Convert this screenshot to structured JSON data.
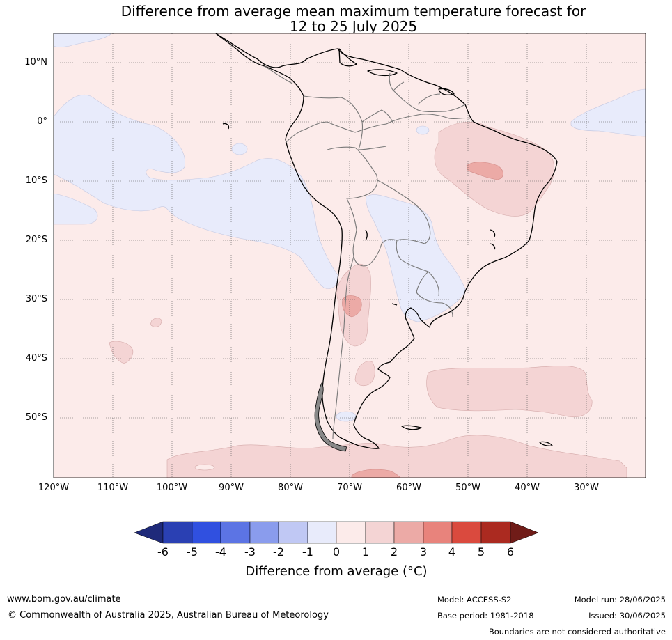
{
  "title": {
    "line1": "Difference from average mean maximum temperature forecast for",
    "line2": "12 to 25 July 2025"
  },
  "lat_labels": [
    "10°N",
    "0°",
    "10°S",
    "20°S",
    "30°S",
    "40°S",
    "50°S"
  ],
  "lon_labels": [
    "120°W",
    "110°W",
    "100°W",
    "90°W",
    "80°W",
    "70°W",
    "60°W",
    "50°W",
    "40°W",
    "30°W"
  ],
  "colorbar": {
    "title": "Difference from average (°C)",
    "ticks": [
      "-6",
      "-5",
      "-4",
      "-3",
      "-2",
      "-1",
      "0",
      "1",
      "2",
      "3",
      "4",
      "5",
      "6"
    ],
    "colors": [
      "#1f2a7a",
      "#2a40b3",
      "#3050e0",
      "#5c74e4",
      "#8a9ced",
      "#c0c8f4",
      "#e8ebfb",
      "#fcebea",
      "#f4d4d4",
      "#ecaaa6",
      "#e8837c",
      "#da4a3e",
      "#ab2a20",
      "#701c18"
    ]
  },
  "footer": {
    "website": "www.bom.gov.au/climate",
    "copyright": "© Commonwealth of Australia 2025, Australian Bureau of Meteorology",
    "model": "Model: ACCESS-S2",
    "base_period": "Base period: 1981-2018",
    "model_run": "Model run: 28/06/2025",
    "issued": "Issued: 30/06/2025",
    "disclaimer": "Boundaries are not considered authoritative"
  }
}
